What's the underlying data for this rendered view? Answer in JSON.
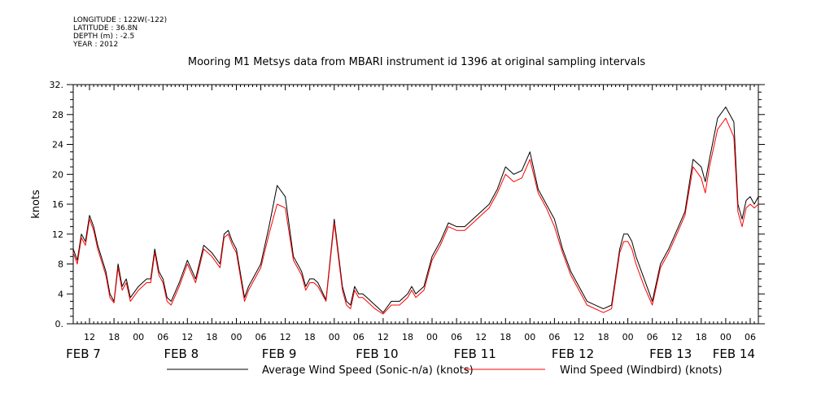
{
  "header": {
    "longitude": "LONGITUDE : 122W(-122)",
    "latitude": "LATITUDE : 36.8N",
    "depth": "DEPTH (m) : -2.5",
    "year": "YEAR : 2012"
  },
  "chart_data": {
    "type": "line",
    "title": "Mooring M1 Metsys data from MBARI instrument id 1396 at original sampling intervals",
    "ylabel": "knots",
    "xlabel": "",
    "ylim": [
      0,
      32
    ],
    "yticks": [
      "0.",
      "4",
      "8",
      "12",
      "16",
      "20",
      "24",
      "28",
      "32."
    ],
    "xlim_hours": [
      8,
      176
    ],
    "hour_tick_labels": [
      "12",
      "18",
      "00",
      "06",
      "12",
      "18",
      "00",
      "06",
      "12",
      "18",
      "00",
      "06",
      "12",
      "18",
      "00",
      "06",
      "12",
      "18",
      "00",
      "06",
      "12",
      "18",
      "00",
      "06",
      "12",
      "18",
      "00",
      "06"
    ],
    "day_labels": [
      "FEB 7",
      "FEB 8",
      "FEB 9",
      "FEB 10",
      "FEB 11",
      "FEB 12",
      "FEB 13",
      "FEB 14"
    ],
    "grid": false,
    "legend_position": "bottom",
    "series": [
      {
        "name": "Average Wind Speed (Sonic-n/a) (knots)",
        "color": "#000000",
        "x": [
          8,
          9,
          10,
          11,
          12,
          13,
          14,
          16,
          17,
          18,
          19,
          20,
          21,
          22,
          24,
          26,
          27,
          28,
          29,
          30,
          31,
          32,
          34,
          36,
          38,
          40,
          42,
          44,
          45,
          46,
          47,
          48,
          50,
          51,
          52,
          54,
          56,
          58,
          60,
          62,
          64,
          65,
          66,
          67,
          68,
          70,
          72,
          74,
          75,
          76,
          77,
          78,
          79,
          80,
          82,
          84,
          86,
          88,
          89,
          90,
          91,
          92,
          94,
          96,
          98,
          100,
          102,
          104,
          106,
          108,
          110,
          112,
          114,
          116,
          118,
          120,
          122,
          124,
          126,
          128,
          130,
          134,
          138,
          140,
          142,
          143,
          144,
          145,
          146,
          148,
          150,
          152,
          154,
          156,
          158,
          160,
          162,
          163,
          164,
          166,
          168,
          170,
          171,
          172,
          173,
          174,
          175,
          176
        ],
        "y": [
          10,
          8.5,
          12,
          11,
          14.5,
          13,
          10.5,
          7,
          4,
          3,
          8,
          5,
          6,
          3.5,
          5,
          6,
          6,
          10,
          7,
          6,
          3.5,
          3,
          5.5,
          8.5,
          6,
          10.5,
          9.5,
          8,
          12,
          12.5,
          11,
          10,
          3.5,
          5,
          6,
          8,
          13,
          18.5,
          17,
          9,
          7,
          5,
          6,
          6,
          5.5,
          3.2,
          14,
          5,
          3,
          2.5,
          5,
          4,
          4,
          3.5,
          2.5,
          1.5,
          3,
          3,
          3.5,
          4,
          5,
          4,
          5,
          9,
          11,
          13.5,
          13,
          13,
          14,
          15,
          16,
          18,
          21,
          20,
          20.5,
          23,
          18,
          16,
          14,
          10,
          7,
          3,
          2,
          2.5,
          10,
          12,
          12,
          11,
          9,
          6,
          3,
          8,
          10,
          12.5,
          15,
          22,
          21,
          19,
          22,
          27.5,
          29,
          27,
          16,
          14,
          16.5,
          17,
          16,
          17
        ]
      },
      {
        "name": "Wind Speed (Windbird) (knots)",
        "color": "#ff0000",
        "x": [
          8,
          9,
          10,
          11,
          12,
          13,
          14,
          16,
          17,
          18,
          19,
          20,
          21,
          22,
          24,
          26,
          27,
          28,
          29,
          30,
          31,
          32,
          34,
          36,
          38,
          40,
          42,
          44,
          45,
          46,
          47,
          48,
          50,
          51,
          52,
          54,
          56,
          58,
          60,
          62,
          64,
          65,
          66,
          67,
          68,
          70,
          72,
          74,
          75,
          76,
          77,
          78,
          79,
          80,
          82,
          84,
          86,
          88,
          89,
          90,
          91,
          92,
          94,
          96,
          98,
          100,
          102,
          104,
          106,
          108,
          110,
          112,
          114,
          116,
          118,
          120,
          122,
          124,
          126,
          128,
          130,
          134,
          138,
          140,
          142,
          143,
          144,
          145,
          146,
          148,
          150,
          152,
          154,
          156,
          158,
          160,
          162,
          163,
          164,
          166,
          168,
          170,
          171,
          172,
          173,
          174,
          175,
          176
        ],
        "y": [
          9.5,
          8,
          11.5,
          10.5,
          14,
          12.5,
          10,
          6.5,
          3.5,
          2.8,
          7.5,
          4.5,
          5.5,
          3,
          4.5,
          5.5,
          5.5,
          9.5,
          6.5,
          5.5,
          3,
          2.5,
          5,
          8,
          5.5,
          10,
          9,
          7.5,
          11.5,
          12,
          10.5,
          9.5,
          3,
          4.5,
          5.5,
          7.5,
          12,
          16,
          15.5,
          8.5,
          6.5,
          4.5,
          5.5,
          5.5,
          5,
          3,
          13.5,
          4.5,
          2.5,
          2,
          4.5,
          3.5,
          3.5,
          3,
          2,
          1.3,
          2.5,
          2.5,
          3,
          3.5,
          4.5,
          3.5,
          4.5,
          8.5,
          10.5,
          13,
          12.5,
          12.5,
          13.5,
          14.5,
          15.5,
          17.5,
          20,
          19,
          19.5,
          22,
          17.5,
          15.5,
          13,
          9.5,
          6.5,
          2.5,
          1.5,
          2,
          9.5,
          11,
          11,
          10,
          8,
          5,
          2.5,
          7.5,
          9.5,
          12,
          14.5,
          21,
          19.5,
          17.5,
          21,
          26,
          27.5,
          25,
          15,
          13,
          15.5,
          16,
          15.5,
          16
        ]
      }
    ]
  }
}
